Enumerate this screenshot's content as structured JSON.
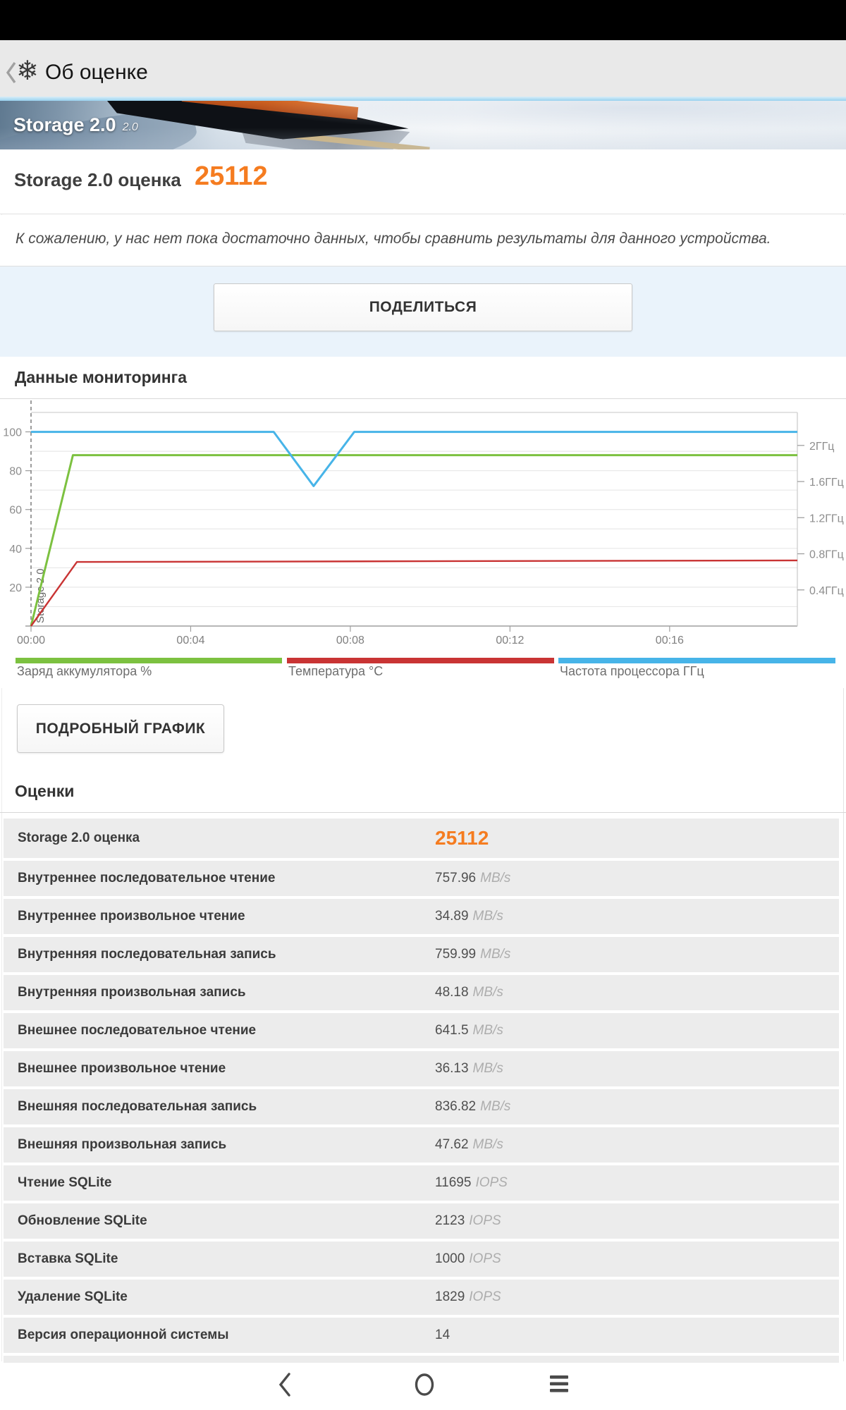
{
  "accent_color": "#f57c20",
  "header": {
    "title": "Об оценке"
  },
  "banner": {
    "title": "Storage 2.0",
    "version_tag": "2.0"
  },
  "score_summary": {
    "label": "Storage 2.0 оценка",
    "value": "25112"
  },
  "message": {
    "text": "К сожалению, у нас нет пока достаточно данных, чтобы сравнить результаты для данного устройства."
  },
  "share": {
    "label": "ПОДЕЛИТЬСЯ"
  },
  "monitoring": {
    "title": "Данные мониторинга",
    "detail_button_label": "ПОДРОБНЫЙ ГРАФИК"
  },
  "chart_data": {
    "type": "line",
    "title": "Данные мониторинга",
    "grid": true,
    "legend_position": "bottom",
    "x_axis": {
      "unit": "mm:ss",
      "max": 19.2,
      "ticks": [
        {
          "t": 0,
          "label": "00:00"
        },
        {
          "t": 4,
          "label": "00:04"
        },
        {
          "t": 8,
          "label": "00:08"
        },
        {
          "t": 12,
          "label": "00:12"
        },
        {
          "t": 16,
          "label": "00:16"
        }
      ]
    },
    "left_axis": {
      "ticks": [
        20,
        40,
        60,
        80,
        100
      ],
      "max": 110
    },
    "right_axis": {
      "unit": "ГГц",
      "max": 2.37,
      "ticks": [
        {
          "v": 0.4,
          "label": "0.4ГГц"
        },
        {
          "v": 0.8,
          "label": "0.8ГГц"
        },
        {
          "v": 1.2,
          "label": "1.2ГГц"
        },
        {
          "v": 1.6,
          "label": "1.6ГГц"
        },
        {
          "v": 2,
          "label": "2ГГц"
        }
      ]
    },
    "annotation": {
      "label": "Storage 2.0",
      "t": 0,
      "style": "dashed-vertical"
    },
    "series": [
      {
        "name": "Заряд аккумулятора %",
        "color": "#7cc140",
        "axis": "left",
        "points": [
          [
            0,
            0
          ],
          [
            1.05,
            88
          ],
          [
            19.2,
            88
          ]
        ]
      },
      {
        "name": "Температура °C",
        "color": "#c93434",
        "axis": "left",
        "points": [
          [
            0,
            0
          ],
          [
            1.15,
            33
          ],
          [
            19.2,
            33.8
          ]
        ]
      },
      {
        "name": "Частота процессора ГГц",
        "color": "#47b4e8",
        "axis": "right",
        "points": [
          [
            0,
            2.15
          ],
          [
            6.08,
            2.15
          ],
          [
            7.08,
            1.55
          ],
          [
            8.1,
            2.15
          ],
          [
            19.2,
            2.15
          ]
        ]
      }
    ]
  },
  "scores": {
    "title": "Оценки",
    "rows": [
      {
        "label": "Storage 2.0 оценка",
        "value": "25112",
        "unit": "",
        "accent": true
      },
      {
        "label": "Внутреннее последовательное чтение",
        "value": "757.96",
        "unit": "MB/s"
      },
      {
        "label": "Внутреннее произвольное чтение",
        "value": "34.89",
        "unit": "MB/s"
      },
      {
        "label": "Внутренняя последовательная запись",
        "value": "759.99",
        "unit": "MB/s"
      },
      {
        "label": "Внутренняя произвольная запись",
        "value": "48.18",
        "unit": "MB/s"
      },
      {
        "label": "Внешнее последовательное чтение",
        "value": "641.5",
        "unit": "MB/s"
      },
      {
        "label": "Внешнее произвольное чтение",
        "value": "36.13",
        "unit": "MB/s"
      },
      {
        "label": "Внешняя последовательная запись",
        "value": "836.82",
        "unit": "MB/s"
      },
      {
        "label": "Внешняя произвольная запись",
        "value": "47.62",
        "unit": "MB/s"
      },
      {
        "label": "Чтение SQLite",
        "value": "11695",
        "unit": "IOPS"
      },
      {
        "label": "Обновление SQLite",
        "value": "2123",
        "unit": "IOPS"
      },
      {
        "label": "Вставка SQLite",
        "value": "1000",
        "unit": "IOPS"
      },
      {
        "label": "Удаление SQLite",
        "value": "1829",
        "unit": "IOPS"
      },
      {
        "label": "Версия операционной системы",
        "value": "14",
        "unit": ""
      }
    ]
  },
  "nav": {
    "back": "back",
    "home": "home",
    "recents": "recents"
  },
  "icons": {
    "logo": "snowflake-icon",
    "back": "back-chevron-icon"
  }
}
